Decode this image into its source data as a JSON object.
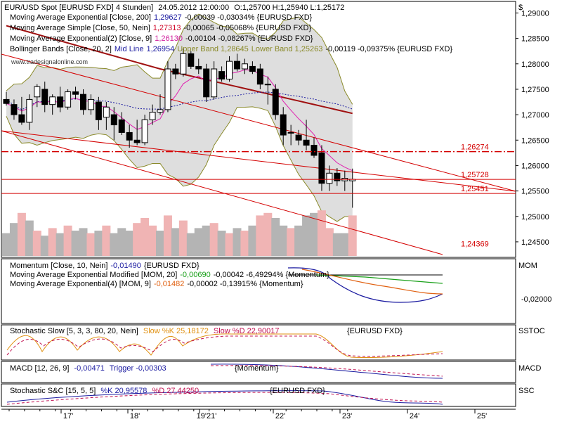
{
  "chart_data": {
    "type": "candlestick",
    "symbol": "EUR/USD Spot [EURUSD FXD]",
    "timeframe": "4 Stunden",
    "header": {
      "prefix": "EUR/USD Spot [EURUSD FXD]  4 Stunden]",
      "datetime": "24.05.2012 12:00:00",
      "ohlc": "O:1,25700 H:1,25940 L:1,25172"
    },
    "watermark": "www.tradesignalonline.com",
    "x_tick_labels": [
      "17'",
      "18'",
      "19'21'",
      "22'",
      "23'",
      "24'",
      "25'"
    ],
    "candles": [
      {
        "o": 1.273,
        "h": 1.2745,
        "l": 1.2718,
        "c": 1.2722
      },
      {
        "o": 1.272,
        "h": 1.273,
        "l": 1.269,
        "c": 1.27
      },
      {
        "o": 1.27,
        "h": 1.2735,
        "l": 1.268,
        "c": 1.2685
      },
      {
        "o": 1.2685,
        "h": 1.274,
        "l": 1.267,
        "c": 1.273
      },
      {
        "o": 1.2735,
        "h": 1.276,
        "l": 1.2715,
        "c": 1.2755
      },
      {
        "o": 1.275,
        "h": 1.2765,
        "l": 1.2705,
        "c": 1.272
      },
      {
        "o": 1.272,
        "h": 1.274,
        "l": 1.27,
        "c": 1.2735
      },
      {
        "o": 1.2735,
        "h": 1.2755,
        "l": 1.2705,
        "c": 1.2715
      },
      {
        "o": 1.2715,
        "h": 1.275,
        "l": 1.271,
        "c": 1.2745
      },
      {
        "o": 1.2745,
        "h": 1.2755,
        "l": 1.273,
        "c": 1.274
      },
      {
        "o": 1.274,
        "h": 1.275,
        "l": 1.27,
        "c": 1.271
      },
      {
        "o": 1.271,
        "h": 1.274,
        "l": 1.27,
        "c": 1.273
      },
      {
        "o": 1.2725,
        "h": 1.2735,
        "l": 1.267,
        "c": 1.269
      },
      {
        "o": 1.2695,
        "h": 1.2725,
        "l": 1.267,
        "c": 1.2715
      },
      {
        "o": 1.27,
        "h": 1.2715,
        "l": 1.265,
        "c": 1.268
      },
      {
        "o": 1.269,
        "h": 1.2705,
        "l": 1.266,
        "c": 1.2665
      },
      {
        "o": 1.2665,
        "h": 1.268,
        "l": 1.2635,
        "c": 1.265
      },
      {
        "o": 1.265,
        "h": 1.269,
        "l": 1.264,
        "c": 1.2645
      },
      {
        "o": 1.2645,
        "h": 1.27,
        "l": 1.264,
        "c": 1.269
      },
      {
        "o": 1.269,
        "h": 1.272,
        "l": 1.268,
        "c": 1.2705
      },
      {
        "o": 1.2705,
        "h": 1.274,
        "l": 1.27,
        "c": 1.271
      },
      {
        "o": 1.271,
        "h": 1.2805,
        "l": 1.2705,
        "c": 1.279
      },
      {
        "o": 1.279,
        "h": 1.28,
        "l": 1.277,
        "c": 1.278
      },
      {
        "o": 1.278,
        "h": 1.283,
        "l": 1.2775,
        "c": 1.282
      },
      {
        "o": 1.282,
        "h": 1.2825,
        "l": 1.279,
        "c": 1.2795
      },
      {
        "o": 1.2795,
        "h": 1.281,
        "l": 1.278,
        "c": 1.279
      },
      {
        "o": 1.279,
        "h": 1.28,
        "l": 1.2725,
        "c": 1.2735
      },
      {
        "o": 1.2735,
        "h": 1.2805,
        "l": 1.273,
        "c": 1.279
      },
      {
        "o": 1.2785,
        "h": 1.2795,
        "l": 1.2765,
        "c": 1.277
      },
      {
        "o": 1.277,
        "h": 1.2815,
        "l": 1.2765,
        "c": 1.2805
      },
      {
        "o": 1.2805,
        "h": 1.282,
        "l": 1.2785,
        "c": 1.279
      },
      {
        "o": 1.279,
        "h": 1.281,
        "l": 1.278,
        "c": 1.28
      },
      {
        "o": 1.2795,
        "h": 1.2805,
        "l": 1.278,
        "c": 1.2785
      },
      {
        "o": 1.279,
        "h": 1.28,
        "l": 1.275,
        "c": 1.276
      },
      {
        "o": 1.276,
        "h": 1.2775,
        "l": 1.272,
        "c": 1.276
      },
      {
        "o": 1.275,
        "h": 1.276,
        "l": 1.269,
        "c": 1.27
      },
      {
        "o": 1.27,
        "h": 1.2715,
        "l": 1.264,
        "c": 1.266
      },
      {
        "o": 1.2665,
        "h": 1.268,
        "l": 1.264,
        "c": 1.2665
      },
      {
        "o": 1.266,
        "h": 1.267,
        "l": 1.264,
        "c": 1.265
      },
      {
        "o": 1.265,
        "h": 1.269,
        "l": 1.263,
        "c": 1.264
      },
      {
        "o": 1.264,
        "h": 1.2655,
        "l": 1.2615,
        "c": 1.262
      },
      {
        "o": 1.2625,
        "h": 1.264,
        "l": 1.255,
        "c": 1.2565
      },
      {
        "o": 1.2565,
        "h": 1.26,
        "l": 1.255,
        "c": 1.2585
      },
      {
        "o": 1.2585,
        "h": 1.2595,
        "l": 1.256,
        "c": 1.257
      },
      {
        "o": 1.257,
        "h": 1.259,
        "l": 1.255,
        "c": 1.2575
      },
      {
        "o": 1.257,
        "h": 1.2594,
        "l": 1.2517,
        "c": 1.2573
      }
    ],
    "volume": [
      {
        "v": 0.45,
        "up": false
      },
      {
        "v": 0.65,
        "up": false
      },
      {
        "v": 0.85,
        "up": true
      },
      {
        "v": 0.7,
        "up": false
      },
      {
        "v": 0.5,
        "up": true
      },
      {
        "v": 0.4,
        "up": false
      },
      {
        "v": 0.55,
        "up": true
      },
      {
        "v": 0.45,
        "up": false
      },
      {
        "v": 0.6,
        "up": true
      },
      {
        "v": 0.5,
        "up": false
      },
      {
        "v": 0.55,
        "up": false
      },
      {
        "v": 0.45,
        "up": true
      },
      {
        "v": 0.5,
        "up": false
      },
      {
        "v": 0.6,
        "up": true
      },
      {
        "v": 0.45,
        "up": false
      },
      {
        "v": 0.55,
        "up": false
      },
      {
        "v": 0.5,
        "up": false
      },
      {
        "v": 0.65,
        "up": true
      },
      {
        "v": 0.75,
        "up": true
      },
      {
        "v": 0.6,
        "up": true
      },
      {
        "v": 0.5,
        "up": false
      },
      {
        "v": 0.8,
        "up": true
      },
      {
        "v": 0.55,
        "up": false
      },
      {
        "v": 0.7,
        "up": true
      },
      {
        "v": 0.45,
        "up": false
      },
      {
        "v": 0.55,
        "up": false
      },
      {
        "v": 0.6,
        "up": false
      },
      {
        "v": 0.65,
        "up": true
      },
      {
        "v": 0.5,
        "up": false
      },
      {
        "v": 0.45,
        "up": true
      },
      {
        "v": 0.55,
        "up": false
      },
      {
        "v": 0.5,
        "up": true
      },
      {
        "v": 0.6,
        "up": false
      },
      {
        "v": 0.8,
        "up": true
      },
      {
        "v": 0.85,
        "up": true
      },
      {
        "v": 0.75,
        "up": false
      },
      {
        "v": 0.6,
        "up": false
      },
      {
        "v": 0.55,
        "up": true
      },
      {
        "v": 0.6,
        "up": false
      },
      {
        "v": 0.8,
        "up": false
      },
      {
        "v": 0.85,
        "up": false
      },
      {
        "v": 0.9,
        "up": true
      },
      {
        "v": 0.55,
        "up": true
      },
      {
        "v": 0.45,
        "up": false
      },
      {
        "v": 0.45,
        "up": false
      },
      {
        "v": 0.8,
        "up": true
      }
    ],
    "y_axis": {
      "label_symbol": "$",
      "ylim": [
        1.2425,
        1.292
      ],
      "ticks": [
        "1,29000",
        "1,28500",
        "1,28000",
        "1,27500",
        "1,27000",
        "1,26500",
        "1,26000",
        "1,25500",
        "1,25000",
        "1,24500"
      ]
    },
    "main_legend": [
      {
        "prefix": "Moving Average Exponential [Close, 200]",
        "value": "1,29627",
        "rest": "-0,00039 -0,03034% {EURUSD FXD}",
        "color": "#1a1aa0"
      },
      {
        "prefix": "Moving Average Simple [Close, 50, Nein]",
        "value": "1,27313",
        "rest": "-0,00065 -0,05068% {EURUSD FXD}",
        "color": "#d10a2a"
      },
      {
        "prefix": "Moving Average Exponential(2) [Close, 9]",
        "value": "1,26130",
        "rest": "-0,00104 -0,08267% {EURUSD FXD}",
        "color": "#d01c9c"
      },
      {
        "prefix": "Bollinger Bands [Close, 20, 2]",
        "mid": "Mid Line",
        "midval": "1,26954",
        "upper": "Upper Band 1,28645",
        "lower": "Lower Band 1,25263",
        "rest": "-0,00119 -0,09375% {EURUSD FXD}"
      }
    ],
    "level_labels": [
      {
        "text": "1,26274",
        "value": 1.26274,
        "color": "#d40000"
      },
      {
        "text": "1,25728",
        "value": 1.25728,
        "color": "#d40000"
      },
      {
        "text": "1,25451",
        "value": 1.25451,
        "color": "#d40000"
      },
      {
        "text": "1,24369",
        "value": 1.24369,
        "color": "#d40000"
      }
    ],
    "momentum_panel": {
      "right_label": "MOM",
      "tick": "-0,02000",
      "legend": [
        {
          "prefix": "Momentum [Close, 10, Nein]",
          "value": "-0,01490",
          "rest": "{EURUSD FXD}",
          "color": "#1a1aa0"
        },
        {
          "prefix": "Moving Average Exponential Modified [MOM, 20]",
          "value": "-0,00690",
          "rest": "-0,00042 -6,49294% {Momentum}",
          "color": "#1aa01a"
        },
        {
          "prefix": "Moving Average Exponential(4) [MOM, 9]",
          "value": "-0,01482",
          "rest": "-0,00002 -0,13915% {Momentum}",
          "color": "#e06010"
        }
      ]
    },
    "stoch_slow_panel": {
      "right_label": "SSTOC",
      "legend": {
        "prefix": "Stochastic Slow [5, 3, 3, 80, 20, Nein]",
        "k": "Slow %K 25,18172",
        "d": "Slow %D 22,90017",
        "src": "{EURUSD FXD}"
      }
    },
    "macd_panel": {
      "right_label": "MACD",
      "legend": {
        "prefix": "MACD [12, 26, 9]",
        "value": "-0,00471",
        "trigger": "Trigger -0,00303",
        "src": "{Momentum}"
      }
    },
    "stoch_sc_panel": {
      "right_label": "SSC",
      "legend": {
        "prefix": "Stochastic S&C [15, 5, 5]",
        "k": "%K 20,95578",
        "d": "%D 27,44250",
        "src": "{EURUSD FXD}"
      }
    },
    "colors": {
      "up": "#ffffff",
      "down": "#000000",
      "vol_up": "#f0b4b4",
      "vol_down": "#b4b4b4",
      "band_fill": "#d8d8d8",
      "band_line": "#8a8a2a",
      "ema200": "#a01010",
      "sma50": "#1a1aa0",
      "ema9": "#e020b0",
      "trend": "#d40000",
      "mom": "#1a1aa0",
      "mom_sig": "#1aa01a",
      "mom_ema": "#e06010"
    }
  }
}
